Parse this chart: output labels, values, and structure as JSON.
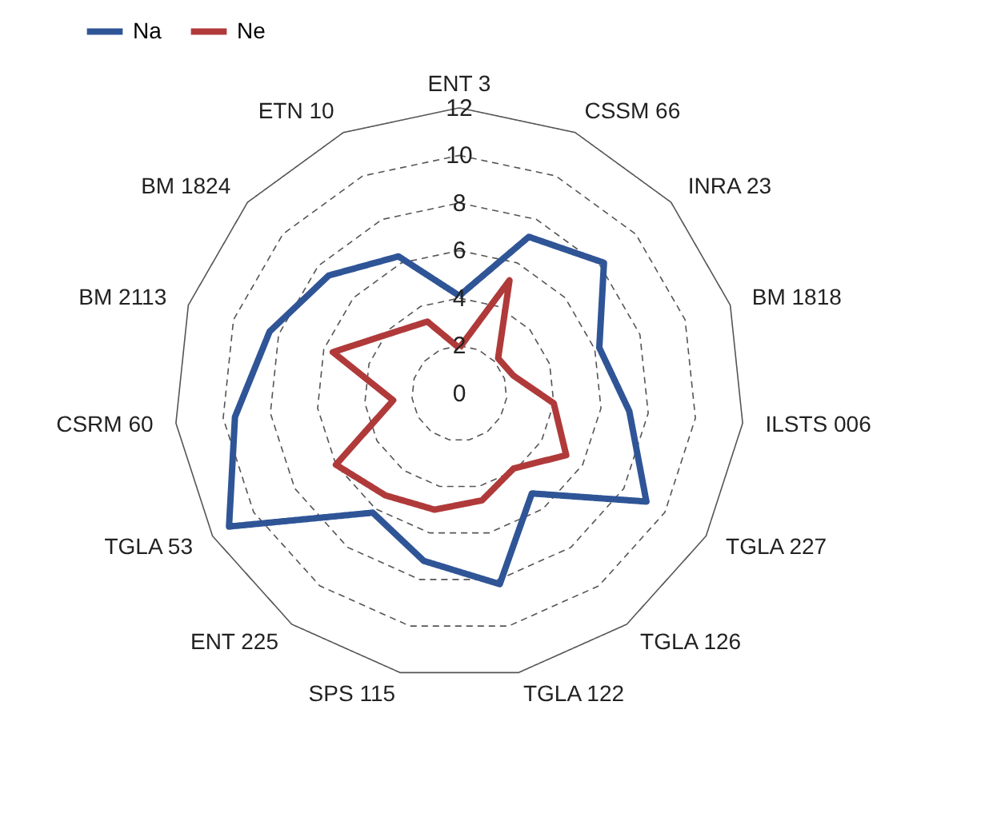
{
  "chart_data": {
    "type": "radar",
    "categories": [
      "ENT 3",
      "CSSM 66",
      "INRA 23",
      "BM 1818",
      "ILSTS 006",
      "TGLA 227",
      "TGLA 126",
      "TGLA 122",
      "SPS 115",
      "ENT 225",
      "TGLA 53",
      "CSRM 60",
      "BM 2113",
      "BM 1824",
      "ETN 10"
    ],
    "series": [
      {
        "name": "Na",
        "color": "#2f5597",
        "values": [
          4.1,
          7.2,
          8.2,
          6.2,
          7.2,
          9.1,
          5.2,
          8.2,
          7.2,
          6.2,
          11.2,
          9.5,
          8.4,
          7.4,
          6.3
        ]
      },
      {
        "name": "Ne",
        "color": "#b03a3a",
        "values": [
          1.9,
          5.2,
          2.2,
          2.4,
          4.0,
          5.2,
          3.9,
          4.6,
          5.0,
          5.3,
          6.0,
          2.8,
          5.6,
          3.8,
          3.3
        ]
      }
    ],
    "ylim": [
      0,
      12
    ],
    "yticks": [
      0,
      2,
      4,
      6,
      8,
      10,
      12
    ],
    "grid": true,
    "legend": "top",
    "marker": "none",
    "line_style": "solid"
  }
}
